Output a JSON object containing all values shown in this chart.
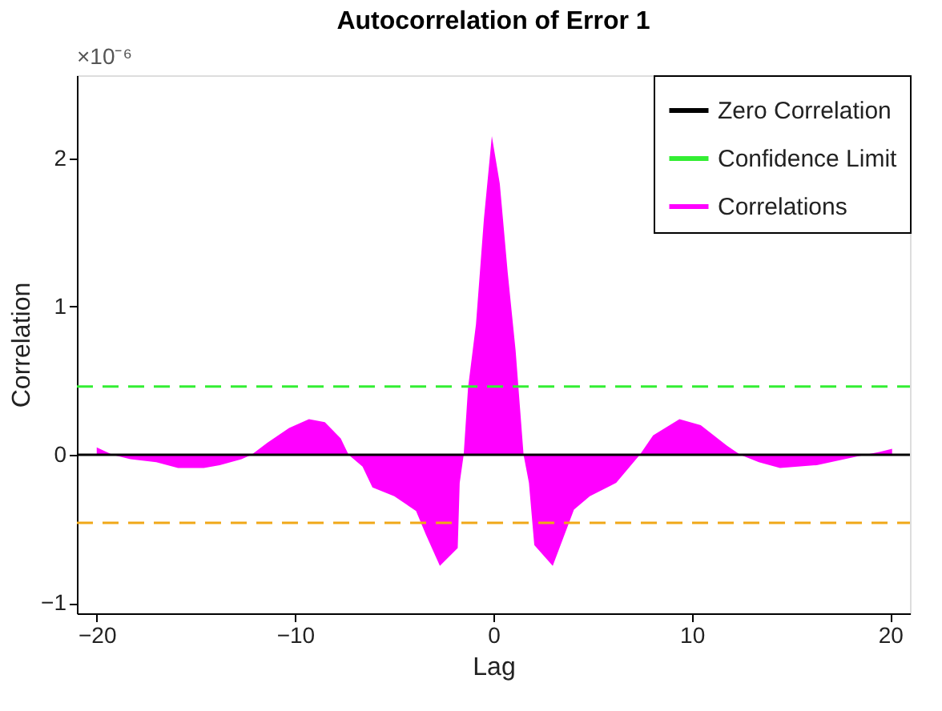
{
  "chart_data": {
    "type": "area",
    "title": "Autocorrelation of Error 1",
    "xlabel": "Lag",
    "ylabel": "Correlation",
    "annotations": [
      "×10⁻⁶"
    ],
    "xlim": [
      -21,
      21
    ],
    "xticks": [
      -20,
      -10,
      0,
      10,
      20
    ],
    "ylim": [
      -1.07,
      2.56
    ],
    "yticks": [
      -1,
      0,
      1,
      2
    ],
    "grid": false,
    "legend": "top right",
    "series": [
      {
        "name": "Zero Correlation",
        "type": "line",
        "line_style": "solid",
        "color": "#000000",
        "x": [
          -21,
          21
        ],
        "values": [
          0,
          0
        ]
      },
      {
        "name": "Confidence Limit",
        "type": "line",
        "line_style": "dashed",
        "color": "#33ee33",
        "x": [
          -21,
          21
        ],
        "values": [
          0.46,
          0.46
        ]
      },
      {
        "name": "Correlations",
        "color": "#ff00ff",
        "x": [
          -20,
          -19.2,
          -18.3,
          -17,
          -15.9,
          -14.6,
          -13.8,
          -12.7,
          -12.2,
          -11.4,
          -10.3,
          -9.3,
          -8.5,
          -7.7,
          -7.3,
          -6.6,
          -6.1,
          -5.0,
          -3.9,
          -3.4,
          -2.7,
          -1.8,
          -1.7,
          -1.5,
          -1.28,
          -0.88,
          -0.48,
          -0.08,
          0.32,
          0.72,
          1.12,
          1.52,
          1.79,
          2.06,
          2.99,
          4.06,
          4.86,
          6.19,
          7.38,
          8.05,
          9.38,
          10.45,
          11.78,
          12.45,
          13.38,
          14.45,
          16.3,
          18.4,
          19.5,
          20.1
        ],
        "values": [
          0.05,
          0,
          -0.03,
          -0.05,
          -0.09,
          -0.09,
          -0.07,
          -0.03,
          0,
          0.08,
          0.18,
          0.24,
          0.22,
          0.11,
          0,
          -0.08,
          -0.22,
          -0.28,
          -0.38,
          -0.54,
          -0.75,
          -0.63,
          -0.19,
          0,
          0.45,
          0.88,
          1.59,
          2.15,
          1.83,
          1.23,
          0.7,
          0,
          -0.19,
          -0.61,
          -0.75,
          -0.37,
          -0.28,
          -0.19,
          0,
          0.13,
          0.24,
          0.2,
          0.06,
          0,
          -0.05,
          -0.09,
          -0.07,
          -0.01,
          0.02,
          0.04
        ]
      },
      {
        "type": "line",
        "line_style": "dashed",
        "color": "#f0a818",
        "x": [
          -21,
          21
        ],
        "values": [
          -0.46,
          -0.46
        ]
      }
    ]
  }
}
